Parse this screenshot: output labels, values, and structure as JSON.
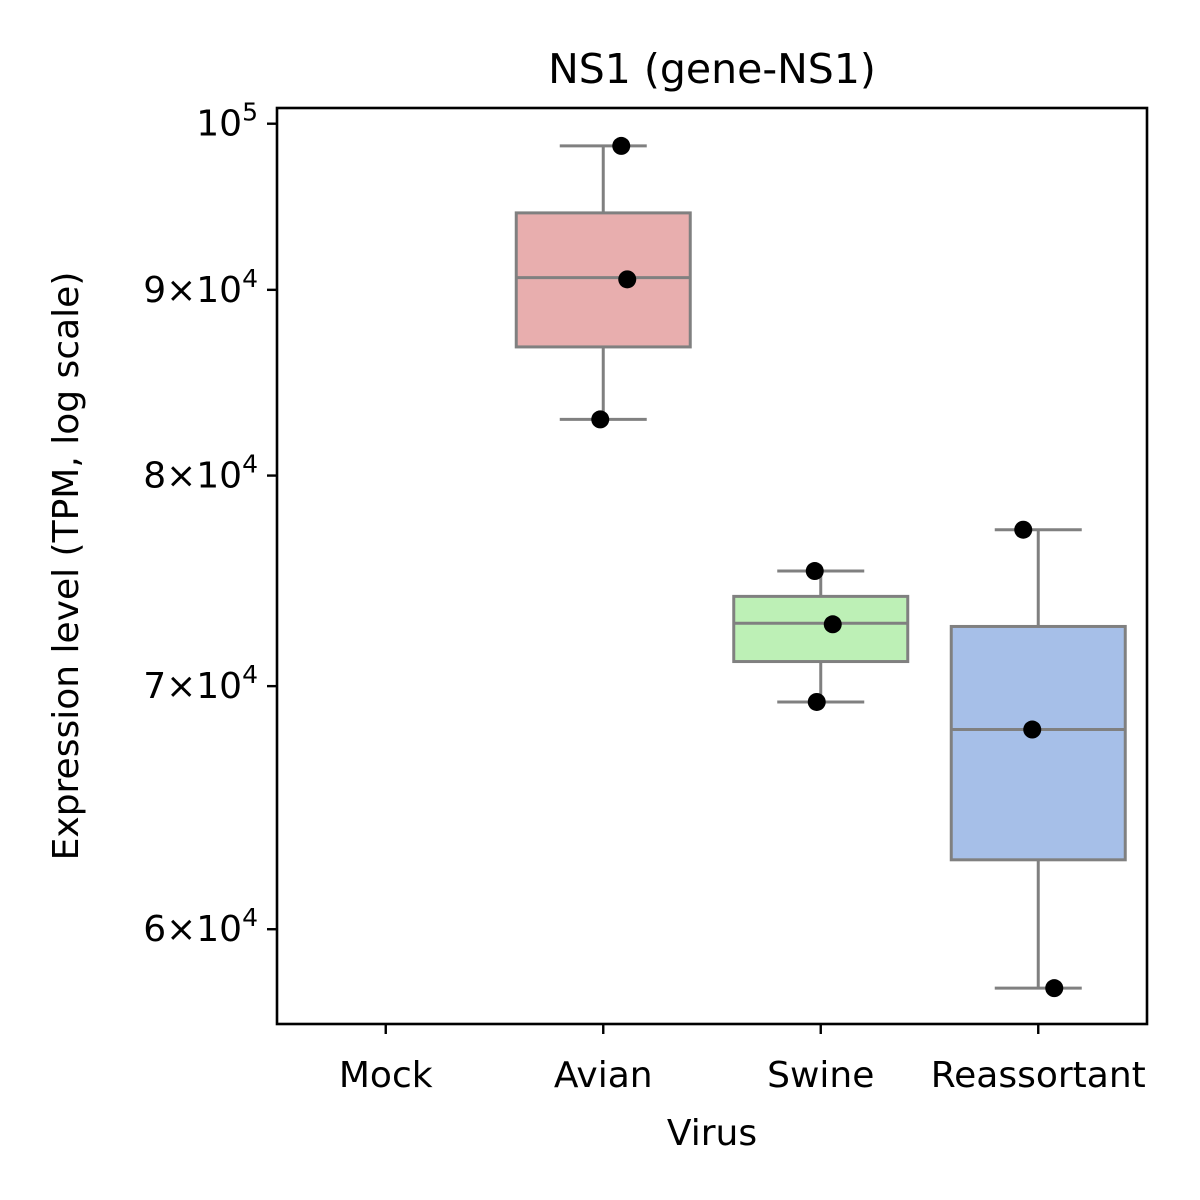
{
  "chart_data": {
    "type": "box",
    "title": "NS1 (gene-NS1)",
    "xlabel": "Virus",
    "ylabel": "Expression level (TPM, log scale)",
    "yscale": "log",
    "ylim": [
      56500,
      101000
    ],
    "yticks": [
      {
        "value": 100000,
        "mantissa": "",
        "base": "10",
        "exp": "5"
      },
      {
        "value": 90000,
        "mantissa": "9",
        "base": "10",
        "exp": "4"
      },
      {
        "value": 80000,
        "mantissa": "8",
        "base": "10",
        "exp": "4"
      },
      {
        "value": 70000,
        "mantissa": "7",
        "base": "10",
        "exp": "4"
      },
      {
        "value": 60000,
        "mantissa": "6",
        "base": "10",
        "exp": "4"
      }
    ],
    "times_sign": "×",
    "categories": [
      "Mock",
      "Avian",
      "Swine",
      "Reassortant"
    ],
    "boxes": [
      {
        "category": "Mock",
        "color": null,
        "stats": null,
        "points": []
      },
      {
        "category": "Avian",
        "color": "#e8aeae",
        "stats": {
          "whislo": 82900,
          "q1": 86800,
          "median": 90700,
          "q3": 94500,
          "whishi": 98600
        },
        "points": [
          98600,
          90600,
          82900
        ]
      },
      {
        "category": "Swine",
        "color": "#bdf0b6",
        "stats": {
          "whislo": 69300,
          "q1": 71100,
          "median": 72850,
          "q3": 74100,
          "whishi": 75300
        },
        "points": [
          75300,
          72800,
          69300
        ]
      },
      {
        "category": "Reassortant",
        "color": "#a6bfe8",
        "stats": {
          "whislo": 57800,
          "q1": 62700,
          "median": 68100,
          "q3": 72700,
          "whishi": 77300
        },
        "points": [
          77300,
          68100,
          57800
        ]
      }
    ],
    "box_edge_color": "#808080",
    "point_color": "#000000",
    "grid": false,
    "legend": null
  }
}
